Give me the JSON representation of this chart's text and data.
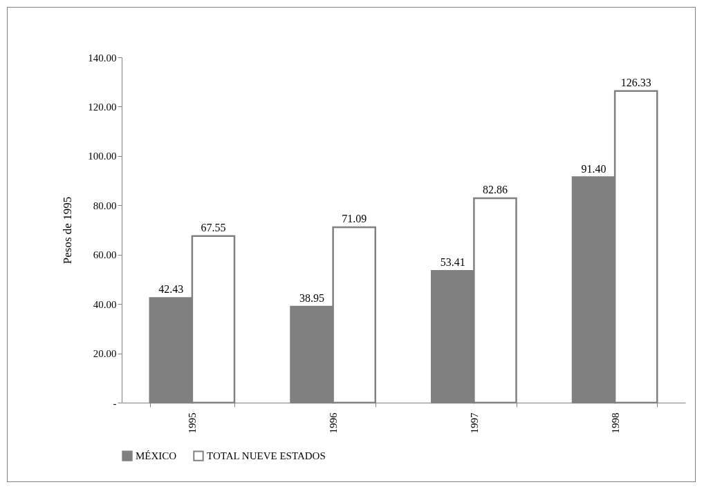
{
  "chart_data": {
    "type": "bar",
    "ylabel": "Pesos de 1995",
    "categories": [
      "1995",
      "1996",
      "1997",
      "1998"
    ],
    "series": [
      {
        "name": "MÉXICO",
        "color": "#808080",
        "values": [
          42.43,
          38.95,
          53.41,
          91.4
        ],
        "value_labels": [
          "42.43",
          "38.95",
          "53.41",
          "91.40"
        ]
      },
      {
        "name": "TOTAL NUEVE ESTADOS",
        "color": "#ffffff",
        "values": [
          67.55,
          71.09,
          82.86,
          126.33
        ],
        "value_labels": [
          "67.55",
          "71.09",
          "82.86",
          "126.33"
        ]
      }
    ],
    "ylim": [
      0,
      140
    ],
    "yticks": [
      {
        "value": 0,
        "label": "-"
      },
      {
        "value": 20,
        "label": "20.00"
      },
      {
        "value": 40,
        "label": "40.00"
      },
      {
        "value": 60,
        "label": "60.00"
      },
      {
        "value": 80,
        "label": "80.00"
      },
      {
        "value": 100,
        "label": "100.00"
      },
      {
        "value": 120,
        "label": "120.00"
      },
      {
        "value": 140,
        "label": "140.00"
      }
    ],
    "grid": false,
    "legend": "bottom"
  }
}
